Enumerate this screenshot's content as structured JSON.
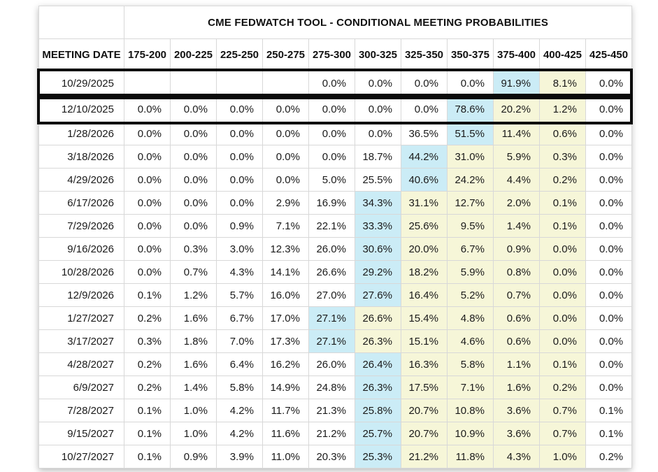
{
  "colors": {
    "highlight_blue": "#cbecf6",
    "highlight_yellow": "#f6f6d8",
    "grid_line": "#d8d8d8",
    "outline_black": "#0a0a0a",
    "text": "#1a1a1a"
  },
  "table": {
    "title": "CME FEDWATCH TOOL - CONDITIONAL MEETING PROBABILITIES",
    "columns": [
      "MEETING DATE",
      "175-200",
      "200-225",
      "225-250",
      "250-275",
      "275-300",
      "300-325",
      "325-350",
      "350-375",
      "375-400",
      "400-425",
      "425-450"
    ],
    "rows": [
      {
        "date": "10/29/2025",
        "outlined": true,
        "values": [
          "",
          "",
          "",
          "",
          "0.0%",
          "0.0%",
          "0.0%",
          "0.0%",
          "91.9%",
          "8.1%",
          "0.0%"
        ],
        "hl": [
          "",
          "",
          "",
          "",
          "",
          "",
          "",
          "",
          "b",
          "y",
          ""
        ]
      },
      {
        "date": "12/10/2025",
        "outlined": true,
        "values": [
          "0.0%",
          "0.0%",
          "0.0%",
          "0.0%",
          "0.0%",
          "0.0%",
          "0.0%",
          "78.6%",
          "20.2%",
          "1.2%",
          "0.0%"
        ],
        "hl": [
          "",
          "",
          "",
          "",
          "",
          "",
          "",
          "b",
          "y",
          "y",
          ""
        ]
      },
      {
        "date": "1/28/2026",
        "outlined": false,
        "values": [
          "0.0%",
          "0.0%",
          "0.0%",
          "0.0%",
          "0.0%",
          "0.0%",
          "36.5%",
          "51.5%",
          "11.4%",
          "0.6%",
          "0.0%"
        ],
        "hl": [
          "",
          "",
          "",
          "",
          "",
          "",
          "",
          "b",
          "y",
          "y",
          ""
        ]
      },
      {
        "date": "3/18/2026",
        "outlined": false,
        "values": [
          "0.0%",
          "0.0%",
          "0.0%",
          "0.0%",
          "0.0%",
          "18.7%",
          "44.2%",
          "31.0%",
          "5.9%",
          "0.3%",
          "0.0%"
        ],
        "hl": [
          "",
          "",
          "",
          "",
          "",
          "",
          "b",
          "y",
          "y",
          "y",
          ""
        ]
      },
      {
        "date": "4/29/2026",
        "outlined": false,
        "values": [
          "0.0%",
          "0.0%",
          "0.0%",
          "0.0%",
          "5.0%",
          "25.5%",
          "40.6%",
          "24.2%",
          "4.4%",
          "0.2%",
          "0.0%"
        ],
        "hl": [
          "",
          "",
          "",
          "",
          "",
          "",
          "b",
          "y",
          "y",
          "y",
          ""
        ]
      },
      {
        "date": "6/17/2026",
        "outlined": false,
        "values": [
          "0.0%",
          "0.0%",
          "0.0%",
          "2.9%",
          "16.9%",
          "34.3%",
          "31.1%",
          "12.7%",
          "2.0%",
          "0.1%",
          "0.0%"
        ],
        "hl": [
          "",
          "",
          "",
          "",
          "",
          "b",
          "y",
          "y",
          "y",
          "y",
          ""
        ]
      },
      {
        "date": "7/29/2026",
        "outlined": false,
        "values": [
          "0.0%",
          "0.0%",
          "0.9%",
          "7.1%",
          "22.1%",
          "33.3%",
          "25.6%",
          "9.5%",
          "1.4%",
          "0.1%",
          "0.0%"
        ],
        "hl": [
          "",
          "",
          "",
          "",
          "",
          "b",
          "y",
          "y",
          "y",
          "y",
          ""
        ]
      },
      {
        "date": "9/16/2026",
        "outlined": false,
        "values": [
          "0.0%",
          "0.3%",
          "3.0%",
          "12.3%",
          "26.0%",
          "30.6%",
          "20.0%",
          "6.7%",
          "0.9%",
          "0.0%",
          "0.0%"
        ],
        "hl": [
          "",
          "",
          "",
          "",
          "",
          "b",
          "y",
          "y",
          "y",
          "y",
          ""
        ]
      },
      {
        "date": "10/28/2026",
        "outlined": false,
        "values": [
          "0.0%",
          "0.7%",
          "4.3%",
          "14.1%",
          "26.6%",
          "29.2%",
          "18.2%",
          "5.9%",
          "0.8%",
          "0.0%",
          "0.0%"
        ],
        "hl": [
          "",
          "",
          "",
          "",
          "",
          "b",
          "y",
          "y",
          "y",
          "y",
          ""
        ]
      },
      {
        "date": "12/9/2026",
        "outlined": false,
        "values": [
          "0.1%",
          "1.2%",
          "5.7%",
          "16.0%",
          "27.0%",
          "27.6%",
          "16.4%",
          "5.2%",
          "0.7%",
          "0.0%",
          "0.0%"
        ],
        "hl": [
          "",
          "",
          "",
          "",
          "",
          "b",
          "y",
          "y",
          "y",
          "y",
          ""
        ]
      },
      {
        "date": "1/27/2027",
        "outlined": false,
        "values": [
          "0.2%",
          "1.6%",
          "6.7%",
          "17.0%",
          "27.1%",
          "26.6%",
          "15.4%",
          "4.8%",
          "0.6%",
          "0.0%",
          "0.0%"
        ],
        "hl": [
          "",
          "",
          "",
          "",
          "b",
          "y",
          "y",
          "y",
          "y",
          "y",
          ""
        ]
      },
      {
        "date": "3/17/2027",
        "outlined": false,
        "values": [
          "0.3%",
          "1.8%",
          "7.0%",
          "17.3%",
          "27.1%",
          "26.3%",
          "15.1%",
          "4.6%",
          "0.6%",
          "0.0%",
          "0.0%"
        ],
        "hl": [
          "",
          "",
          "",
          "",
          "b",
          "y",
          "y",
          "y",
          "y",
          "y",
          ""
        ]
      },
      {
        "date": "4/28/2027",
        "outlined": false,
        "values": [
          "0.2%",
          "1.6%",
          "6.4%",
          "16.2%",
          "26.0%",
          "26.4%",
          "16.3%",
          "5.8%",
          "1.1%",
          "0.1%",
          "0.0%"
        ],
        "hl": [
          "",
          "",
          "",
          "",
          "",
          "b",
          "y",
          "y",
          "y",
          "y",
          ""
        ]
      },
      {
        "date": "6/9/2027",
        "outlined": false,
        "values": [
          "0.2%",
          "1.4%",
          "5.8%",
          "14.9%",
          "24.8%",
          "26.3%",
          "17.5%",
          "7.1%",
          "1.6%",
          "0.2%",
          "0.0%"
        ],
        "hl": [
          "",
          "",
          "",
          "",
          "",
          "b",
          "y",
          "y",
          "y",
          "y",
          ""
        ]
      },
      {
        "date": "7/28/2027",
        "outlined": false,
        "values": [
          "0.1%",
          "1.0%",
          "4.2%",
          "11.7%",
          "21.3%",
          "25.8%",
          "20.7%",
          "10.8%",
          "3.6%",
          "0.7%",
          "0.1%"
        ],
        "hl": [
          "",
          "",
          "",
          "",
          "",
          "b",
          "y",
          "y",
          "y",
          "y",
          ""
        ]
      },
      {
        "date": "9/15/2027",
        "outlined": false,
        "values": [
          "0.1%",
          "1.0%",
          "4.2%",
          "11.6%",
          "21.2%",
          "25.7%",
          "20.7%",
          "10.9%",
          "3.6%",
          "0.7%",
          "0.1%"
        ],
        "hl": [
          "",
          "",
          "",
          "",
          "",
          "b",
          "y",
          "y",
          "y",
          "y",
          ""
        ]
      },
      {
        "date": "10/27/2027",
        "outlined": false,
        "values": [
          "0.1%",
          "0.9%",
          "3.9%",
          "11.0%",
          "20.3%",
          "25.3%",
          "21.2%",
          "11.8%",
          "4.3%",
          "1.0%",
          "0.2%"
        ],
        "hl": [
          "",
          "",
          "",
          "",
          "",
          "b",
          "y",
          "y",
          "y",
          "y",
          ""
        ]
      }
    ]
  }
}
